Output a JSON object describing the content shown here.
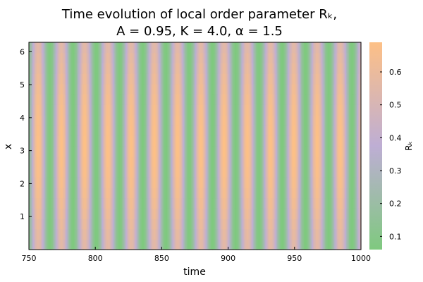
{
  "chart_data": {
    "type": "heatmap",
    "title_line1": "Time evolution of local order parameter Rₖ,",
    "title_line2": "A = 0.95, K = 4.0, α = 1.5",
    "xlabel": "time",
    "ylabel": "x",
    "colorbar_label": "Rₖ",
    "xlim": [
      750,
      1000
    ],
    "ylim": [
      0,
      6.2832
    ],
    "x_ticks": [
      750,
      800,
      850,
      900,
      950,
      1000
    ],
    "x_tick_labels": [
      "750",
      "800",
      "850",
      "900",
      "950",
      "1000"
    ],
    "y_ticks": [
      1,
      2,
      3,
      4,
      5,
      6
    ],
    "y_tick_labels": [
      "1",
      "2",
      "3",
      "4",
      "5",
      "6"
    ],
    "zlim": [
      0.06,
      0.69
    ],
    "colorbar_ticks": [
      0.1,
      0.2,
      0.3,
      0.4,
      0.5,
      0.6
    ],
    "colorbar_tick_labels": [
      "0.1",
      "0.2",
      "0.3",
      "0.4",
      "0.5",
      "0.6"
    ],
    "colormap": [
      "#7fc97f",
      "#beaed4",
      "#fdc086"
    ],
    "oscillation_period": 17.5,
    "oscillation_phase_time": 757,
    "peak_value": 0.69,
    "trough_value": 0.06,
    "peak_time_centers": [
      766,
      783.5,
      801,
      818.5,
      836,
      853.5,
      871,
      888.5,
      906,
      923.5,
      941,
      958.5,
      976,
      993.5
    ],
    "spatial_profile": "Rₖ highest near x = π, lower toward x = 0 and x = 2π",
    "grid": false
  }
}
